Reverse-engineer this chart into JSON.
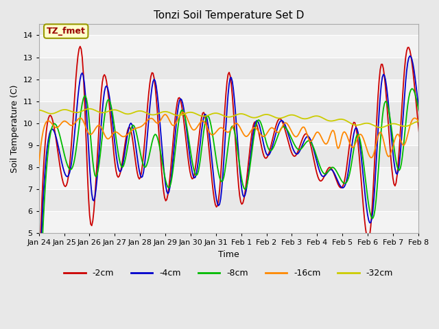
{
  "title": "Tonzi Soil Temperature Set D",
  "xlabel": "Time",
  "ylabel": "Soil Temperature (C)",
  "ylim": [
    5.0,
    14.5
  ],
  "yticks": [
    5.0,
    6.0,
    7.0,
    8.0,
    9.0,
    10.0,
    11.0,
    12.0,
    13.0,
    14.0
  ],
  "legend_label": "TZ_fmet",
  "series_colors": {
    "-2cm": "#cc0000",
    "-4cm": "#0000cc",
    "-8cm": "#00bb00",
    "-16cm": "#ff8800",
    "-32cm": "#cccc00"
  },
  "xtick_labels": [
    "Jan 24",
    "Jan 25",
    "Jan 26",
    "Jan 27",
    "Jan 28",
    "Jan 29",
    "Jan 30",
    "Jan 31",
    "Feb 1",
    "Feb 2",
    "Feb 3",
    "Feb 4",
    "Feb 5",
    "Feb 6",
    "Feb 7",
    "Feb 8"
  ],
  "fig_bg": "#e8e8e8",
  "plot_bg": "#e8e8e8",
  "grid_color": "#ffffff",
  "annot_box_color": "#ffffcc",
  "annot_text_color": "#990000",
  "annot_border_color": "#999900"
}
